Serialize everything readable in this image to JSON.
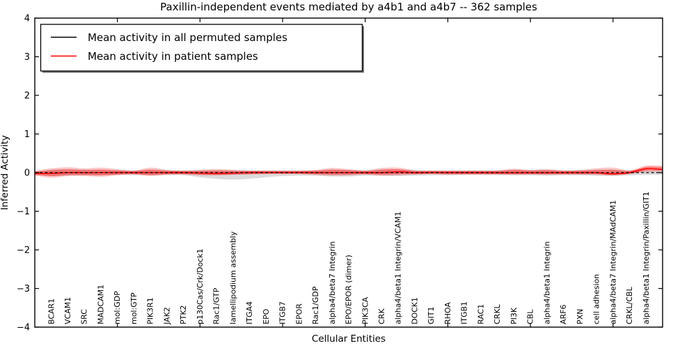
{
  "figure": {
    "title": "Paxillin-independent events mediated by a4b1 and a4b7 -- 362 samples",
    "background": "#ffffff"
  },
  "legend": {
    "position": "upper left",
    "entries": [
      {
        "label": "Mean activity in all permuted samples",
        "color": "#000000",
        "style": "solid"
      },
      {
        "label": "Mean activity in patient samples",
        "color": "#ff0000",
        "style": "solid"
      }
    ]
  },
  "chart_data": {
    "type": "line",
    "title": "Paxillin-independent events mediated by a4b1 and a4b7 -- 362 samples",
    "xlabel": "Cellular Entities",
    "ylabel": "Inferred Activity",
    "ylim": [
      -4,
      4
    ],
    "yticks": [
      "4",
      "3",
      "2",
      "1",
      "0",
      "−1",
      "−2",
      "−3",
      "−4"
    ],
    "grid": false,
    "legend_position": "upper left",
    "categories": [
      "BCAR1",
      "VCAM1",
      "SRC",
      "MADCAM1",
      "mol:GDP",
      "mol:GTP",
      "PIK3R1",
      "JAK2",
      "PTK2",
      "p130Cas/Crk/Dock1",
      "Rac1/GTP",
      "lamellipodium assembly",
      "ITGA4",
      "EPO",
      "ITGB7",
      "EPOR",
      "Rac1/GDP",
      "alpha4/beta7 Integrin",
      "EPO/EPOR (dimer)",
      "PIK3CA",
      "CRK",
      "alpha4/beta1 Integrin/VCAM1",
      "DOCK1",
      "GIT1",
      "RHOA",
      "ITGB1",
      "RAC1",
      "CRKL",
      "PI3K",
      "CBL",
      "alpha4/beta1 Integrin",
      "ARF6",
      "PXN",
      "cell adhesion",
      "alpha4/beta7 Integrin/MAdCAM1",
      "CRKL/CBL",
      "alpha4/beta1 Integrin/Paxillin/GIT1"
    ],
    "series": [
      {
        "name": "Mean activity in all permuted samples",
        "color": "#000000",
        "style": "dashed",
        "values": [
          0,
          0,
          0,
          0,
          0,
          0,
          0,
          0,
          0,
          0,
          0,
          0,
          0,
          0,
          0,
          0,
          0,
          0,
          0,
          0,
          0,
          0,
          0,
          0,
          0,
          0,
          0,
          0,
          0,
          0,
          0,
          0,
          0,
          0,
          0,
          0,
          0
        ]
      },
      {
        "name": "Mean activity in patient samples",
        "color": "#ff0000",
        "style": "solid",
        "values": [
          -0.02,
          0,
          0,
          0,
          0,
          0,
          0,
          0,
          0,
          -0.01,
          -0.02,
          -0.01,
          0,
          0,
          0,
          0,
          0,
          0,
          0,
          0,
          0,
          0.02,
          0,
          0,
          0,
          0,
          0,
          0,
          0,
          0,
          0,
          0,
          0,
          0,
          -0.03,
          0,
          0.1
        ]
      }
    ],
    "bands": [
      {
        "name": "permuted samples spread",
        "color": "rgba(0,0,0,0.14)",
        "hi": [
          0.08,
          0.08,
          0.07,
          0.07,
          0.06,
          0.06,
          0.07,
          0.06,
          0.06,
          0.07,
          0.07,
          0.07,
          0.06,
          0.06,
          0.06,
          0.06,
          0.06,
          0.07,
          0.07,
          0.06,
          0.07,
          0.08,
          0.07,
          0.06,
          0.06,
          0.06,
          0.06,
          0.06,
          0.07,
          0.07,
          0.07,
          0.06,
          0.06,
          0.07,
          0.08,
          0.06,
          0.06
        ],
        "lo": [
          -0.09,
          -0.08,
          -0.07,
          -0.07,
          -0.06,
          -0.06,
          -0.07,
          -0.06,
          -0.07,
          -0.12,
          -0.16,
          -0.18,
          -0.16,
          -0.12,
          -0.09,
          -0.08,
          -0.08,
          -0.1,
          -0.1,
          -0.08,
          -0.08,
          -0.09,
          -0.08,
          -0.07,
          -0.07,
          -0.06,
          -0.06,
          -0.06,
          -0.07,
          -0.07,
          -0.08,
          -0.07,
          -0.07,
          -0.08,
          -0.09,
          -0.07,
          -0.06
        ]
      },
      {
        "name": "patient samples spread (outer)",
        "color": "rgba(255,0,0,0.22)",
        "hi": [
          0.11,
          0.14,
          0.11,
          0.13,
          0.09,
          0.05,
          0.13,
          0.07,
          0.05,
          0.07,
          0.09,
          0.07,
          0.05,
          0.05,
          0.05,
          0.05,
          0.07,
          0.12,
          0.09,
          0.06,
          0.12,
          0.13,
          0.06,
          0.05,
          0.05,
          0.05,
          0.05,
          0.06,
          0.1,
          0.07,
          0.09,
          0.06,
          0.07,
          0.11,
          0.13,
          0.06,
          0.18
        ],
        "lo": [
          -0.13,
          -0.09,
          -0.09,
          -0.11,
          -0.07,
          -0.05,
          -0.09,
          -0.06,
          -0.05,
          -0.07,
          -0.07,
          -0.06,
          -0.05,
          -0.04,
          -0.04,
          -0.04,
          -0.06,
          -0.08,
          -0.07,
          -0.05,
          -0.08,
          -0.07,
          -0.05,
          -0.04,
          -0.05,
          -0.05,
          -0.05,
          -0.05,
          -0.06,
          -0.05,
          -0.06,
          -0.05,
          -0.05,
          -0.06,
          -0.07,
          -0.04,
          0.02
        ]
      },
      {
        "name": "patient samples spread (inner)",
        "color": "rgba(255,0,0,0.30)",
        "hi": [
          0.05,
          0.08,
          0.06,
          0.07,
          0.05,
          0.03,
          0.07,
          0.04,
          0.03,
          0.03,
          0.04,
          0.03,
          0.03,
          0.03,
          0.03,
          0.03,
          0.04,
          0.07,
          0.05,
          0.03,
          0.07,
          0.08,
          0.03,
          0.03,
          0.03,
          0.03,
          0.03,
          0.03,
          0.06,
          0.04,
          0.05,
          0.03,
          0.04,
          0.06,
          0.06,
          0.03,
          0.14
        ],
        "lo": [
          -0.08,
          -0.05,
          -0.05,
          -0.06,
          -0.04,
          -0.03,
          -0.05,
          -0.03,
          -0.03,
          -0.04,
          -0.05,
          -0.04,
          -0.03,
          -0.02,
          -0.02,
          -0.02,
          -0.03,
          -0.04,
          -0.04,
          -0.03,
          -0.04,
          -0.03,
          -0.03,
          -0.02,
          -0.03,
          -0.03,
          -0.03,
          -0.03,
          -0.03,
          -0.03,
          -0.03,
          -0.03,
          -0.03,
          -0.03,
          -0.05,
          -0.02,
          0.06
        ]
      }
    ]
  }
}
